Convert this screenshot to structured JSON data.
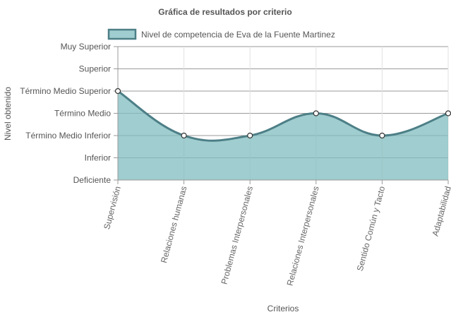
{
  "colors": {
    "fill": "rgba(128,188,191,0.75)",
    "line": "#4d7f87",
    "point_fill": "#ffffff",
    "point_stroke": "#333333"
  },
  "chart_data": {
    "type": "area",
    "title": "Gráfica de resultados por criterio",
    "xlabel": "Criterios",
    "ylabel": "Nivel obtenido",
    "legend_position": "top",
    "grid": true,
    "y_levels": [
      "Deficiente",
      "Inferior",
      "Término Medio Inferior",
      "Término Medio",
      "Término Medio Superior",
      "Superior",
      "Muy Superior"
    ],
    "categories": [
      "Supervisión",
      "Relaciones humanas",
      "Problemas Interpersonales",
      "Relaciones Interpersonales",
      "Sentido Común y Tacto",
      "Adaptabilidad"
    ],
    "series": [
      {
        "name": "Nivel de competencia de Eva de la Fuente Martinez",
        "values": [
          "Término Medio Superior",
          "Término Medio Inferior",
          "Término Medio Inferior",
          "Término Medio",
          "Término Medio Inferior",
          "Término Medio"
        ]
      }
    ]
  }
}
